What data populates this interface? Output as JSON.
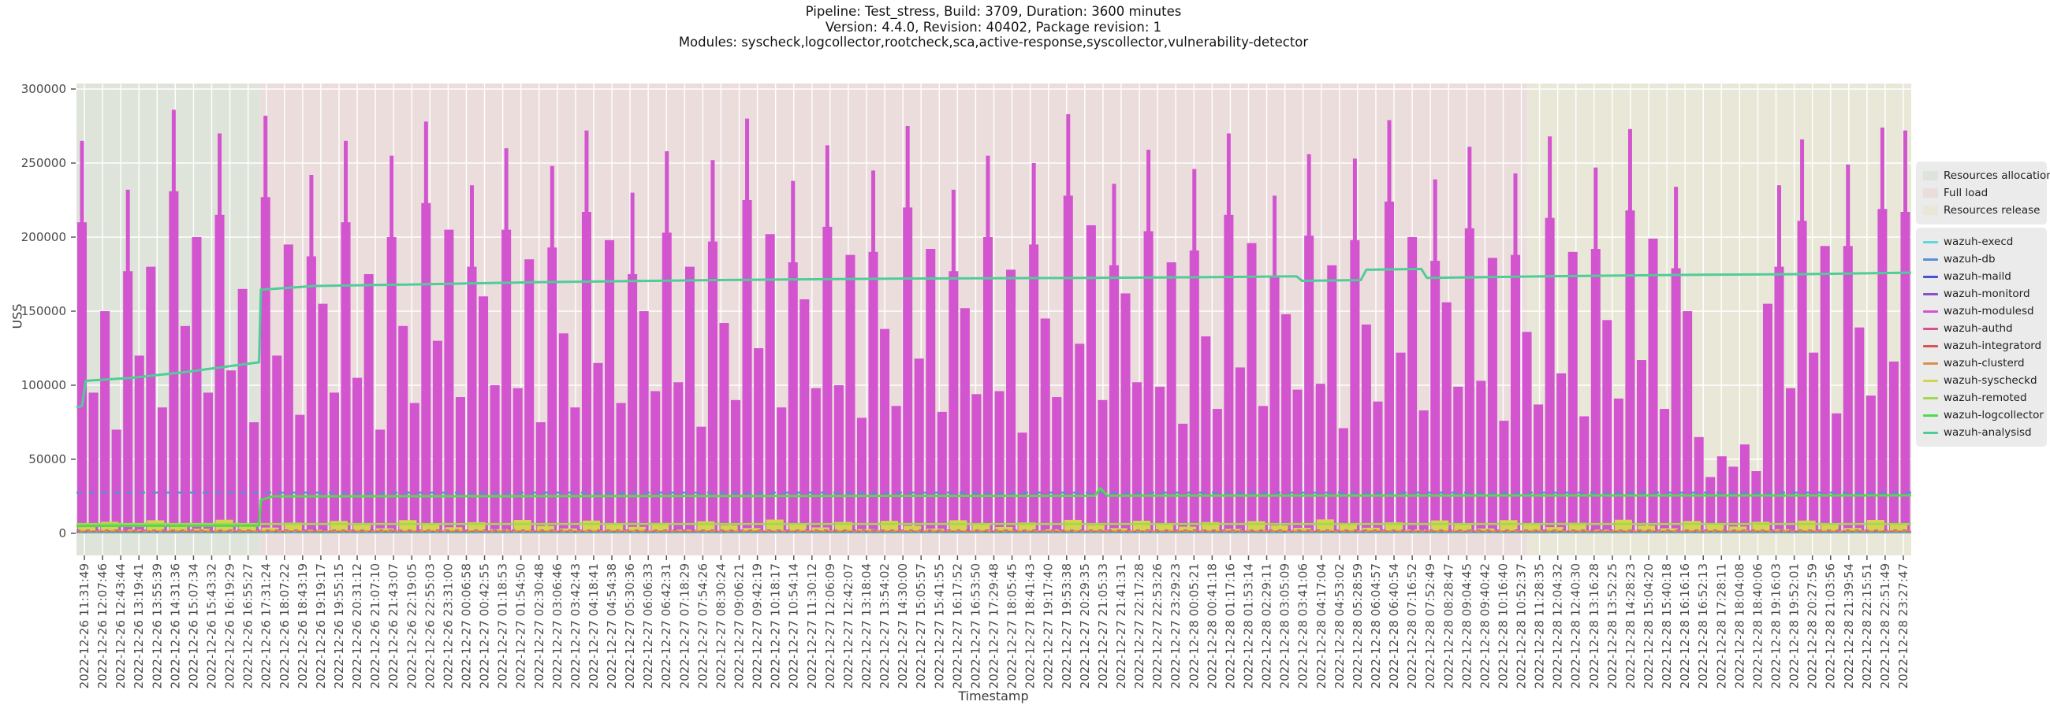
{
  "title": {
    "line1": "Pipeline: Test_stress, Build: 3709, Duration: 3600 minutes",
    "line2": "Version: 4.4.0, Revision: 40402, Package revision: 1",
    "line3": "Modules: syscheck,logcollector,rootcheck,sca,active-response,syscollector,vulnerability-detector"
  },
  "axes": {
    "x_label": "Timestamp",
    "y_label": "USS",
    "y_ticks": [
      0,
      50000,
      100000,
      150000,
      200000,
      250000,
      300000
    ],
    "x_tick_time": {
      "start": "2022-12-26 11:31:49",
      "end": "2022-12-28 23:27:47",
      "count": 101,
      "total_seconds": 215758
    }
  },
  "phases": [
    {
      "label": "Resources allocation",
      "color": "#dee4da",
      "from": 0.0,
      "to": 0.1001
    },
    {
      "label": "Full load",
      "color": "#ecdddd",
      "from": 0.1001,
      "to": 0.7907
    },
    {
      "label": "Resources release",
      "color": "#e9e8d8",
      "from": 0.7907,
      "to": 1.0
    }
  ],
  "series_legend": [
    {
      "label": "wazuh-execd",
      "color": "#5fd9d9"
    },
    {
      "label": "wazuh-db",
      "color": "#5b8dd9"
    },
    {
      "label": "wazuh-maild",
      "color": "#4a4fd9"
    },
    {
      "label": "wazuh-monitord",
      "color": "#8c4fd0"
    },
    {
      "label": "wazuh-modulesd",
      "color": "#d254cf"
    },
    {
      "label": "wazuh-authd",
      "color": "#d94f93"
    },
    {
      "label": "wazuh-integratord",
      "color": "#d95555"
    },
    {
      "label": "wazuh-clusterd",
      "color": "#d9904f"
    },
    {
      "label": "wazuh-syscheckd",
      "color": "#d6d44f"
    },
    {
      "label": "wazuh-remoted",
      "color": "#a0d94f"
    },
    {
      "label": "wazuh-logcollector",
      "color": "#52d952"
    },
    {
      "label": "wazuh-analysisd",
      "color": "#50cc98"
    }
  ],
  "chart_data": {
    "type": "line",
    "title": "Pipeline: Test_stress, Build: 3709, Duration: 3600 minutes",
    "xlabel": "Timestamp",
    "ylabel": "USS",
    "ylim": [
      -15000,
      304000
    ],
    "x_range": [
      "2022-12-26 11:31:49",
      "2022-12-28 23:27:47"
    ],
    "grid": true,
    "legend_position": "right",
    "series": [
      {
        "name": "wazuh-modulesd",
        "color": "#d254cf",
        "style": "spikes",
        "values": [
          265000,
          95000,
          150000,
          70000,
          232000,
          120000,
          180000,
          85000,
          286000,
          140000,
          200000,
          95000,
          270000,
          110000,
          165000,
          75000,
          282000,
          120000,
          195000,
          80000,
          242000,
          155000,
          95000,
          265000,
          105000,
          175000,
          70000,
          255000,
          140000,
          88000,
          278000,
          130000,
          205000,
          92000,
          235000,
          160000,
          100000,
          260000,
          98000,
          185000,
          75000,
          248000,
          135000,
          85000,
          272000,
          115000,
          198000,
          88000,
          230000,
          150000,
          96000,
          258000,
          102000,
          180000,
          72000,
          252000,
          142000,
          90000,
          280000,
          125000,
          202000,
          85000,
          238000,
          158000,
          98000,
          262000,
          100000,
          188000,
          78000,
          245000,
          138000,
          86000,
          275000,
          118000,
          192000,
          82000,
          232000,
          152000,
          94000,
          255000,
          96000,
          178000,
          68000,
          250000,
          145000,
          92000,
          283000,
          128000,
          208000,
          90000,
          236000,
          162000,
          102000,
          259000,
          99000,
          183000,
          74000,
          246000,
          133000,
          84000,
          270000,
          112000,
          196000,
          86000,
          228000,
          148000,
          97000,
          256000,
          101000,
          181000,
          71000,
          253000,
          141000,
          89000,
          279000,
          122000,
          200000,
          83000,
          239000,
          156000,
          99000,
          261000,
          103000,
          186000,
          76000,
          243000,
          136000,
          87000,
          268000,
          108000,
          190000,
          79000,
          247000,
          144000,
          91000,
          273000,
          117000,
          199000,
          84000,
          234000,
          150000,
          65000,
          38000,
          52000,
          45000,
          60000,
          42000,
          155000,
          235000,
          98000,
          266000,
          122000,
          194000,
          81000,
          249000,
          139000,
          93000,
          274000,
          116000,
          272000
        ]
      },
      {
        "name": "wazuh-syscheckd",
        "color": "#d6d44f",
        "style": "bars",
        "values": [
          4200,
          7800,
          2600,
          8800,
          5200,
          3100,
          9200,
          6100,
          3900,
          7200,
          2400,
          8300,
          5600,
          3400,
          8900,
          6400,
          4100,
          7500,
          2800,
          9000,
          5000,
          3300,
          8600,
          5900,
          4400,
          7000,
          2500,
          8100,
          5400,
          3600,
          9300,
          6600,
          4000,
          7700,
          2900,
          8400,
          5100,
          3200,
          8800,
          6200,
          4300,
          7300,
          2700,
          9100,
          5500,
          3500,
          8500,
          6000,
          4500,
          7600,
          3000,
          8200,
          5300,
          3700,
          9400,
          6300,
          3800,
          7400,
          2600,
          8700,
          5700,
          3300,
          8900,
          6500,
          4200,
          7100,
          2500,
          9200,
          5200,
          3400,
          8300,
          6100,
          4600,
          7800,
          2800,
          8600,
          5800,
          3600,
          9000,
          6400
        ]
      },
      {
        "name": "wazuh-analysisd",
        "color": "#50cc98",
        "style": "step-line",
        "width": 3,
        "points": [
          [
            0,
            85000
          ],
          [
            0.003,
            86000
          ],
          [
            0.005,
            103000
          ],
          [
            0.03,
            105000
          ],
          [
            0.06,
            109000
          ],
          [
            0.0995,
            115500
          ],
          [
            0.1005,
            164500
          ],
          [
            0.13,
            167000
          ],
          [
            0.18,
            168000
          ],
          [
            0.25,
            169500
          ],
          [
            0.35,
            171000
          ],
          [
            0.45,
            172000
          ],
          [
            0.55,
            172500
          ],
          [
            0.62,
            173000
          ],
          [
            0.665,
            173500
          ],
          [
            0.668,
            170500
          ],
          [
            0.7,
            171000
          ],
          [
            0.703,
            178000
          ],
          [
            0.733,
            178500
          ],
          [
            0.736,
            172500
          ],
          [
            0.8,
            173500
          ],
          [
            0.88,
            174500
          ],
          [
            0.94,
            175000
          ],
          [
            1.0,
            176000
          ]
        ]
      },
      {
        "name": "wazuh-logcollector",
        "color": "#52d952",
        "style": "step-line",
        "width": 3,
        "points": [
          [
            0,
            5000
          ],
          [
            0.0995,
            5200
          ],
          [
            0.1005,
            22500
          ],
          [
            0.107,
            25000
          ],
          [
            0.555,
            25300
          ],
          [
            0.558,
            30500
          ],
          [
            0.562,
            25400
          ],
          [
            1.0,
            25600
          ]
        ]
      },
      {
        "name": "wazuh-db",
        "color": "#5b8dd9",
        "style": "hline",
        "value": 27500,
        "width": 2.5,
        "dash": "7,9"
      },
      {
        "name": "wazuh-remoted",
        "color": "#a0d94f",
        "style": "hline",
        "value": 6300,
        "width": 2.5
      },
      {
        "name": "wazuh-monitord",
        "color": "#8c4fd0",
        "style": "hline",
        "value": 1900,
        "width": 2,
        "dash": "5,7"
      },
      {
        "name": "wazuh-clusterd",
        "color": "#d9904f",
        "style": "hline",
        "value": 1300,
        "width": 2.5
      },
      {
        "name": "wazuh-authd",
        "color": "#d94f93",
        "style": "hline",
        "value": 950,
        "width": 2,
        "dash": "4,6"
      },
      {
        "name": "wazuh-integratord",
        "color": "#d95555",
        "style": "hline",
        "value": 450,
        "width": 2
      },
      {
        "name": "wazuh-maild",
        "color": "#4a4fd9",
        "style": "hline",
        "value": 250,
        "width": 1.5,
        "dash": "4,5"
      },
      {
        "name": "wazuh-execd",
        "color": "#5fd9d9",
        "style": "hline",
        "value": 120,
        "width": 1.5
      }
    ]
  }
}
